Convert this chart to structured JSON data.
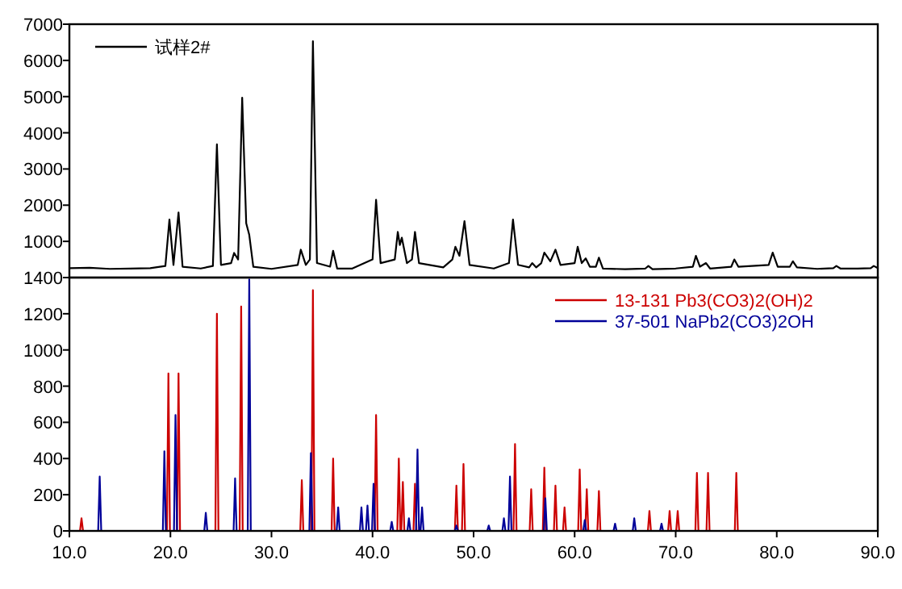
{
  "chart_data": [
    {
      "type": "line",
      "xlim": [
        10,
        90
      ],
      "ylim": [
        0,
        7000
      ],
      "yticks": [
        1000,
        2000,
        3000,
        4000,
        5000,
        6000,
        7000
      ],
      "tick_labels": "y",
      "legend": "top left",
      "series": [
        {
          "name": "试样2#",
          "color": "#000000",
          "x": [
            10,
            12,
            14,
            16,
            18,
            19.5,
            19.9,
            20.3,
            20.8,
            21.2,
            23,
            24.2,
            24.6,
            25.0,
            26.0,
            26.3,
            26.7,
            27.1,
            27.5,
            27.8,
            28.2,
            30,
            32.6,
            32.9,
            33.4,
            33.8,
            34.1,
            34.5,
            35.8,
            36.1,
            36.5,
            38,
            40.0,
            40.35,
            40.8,
            42.2,
            42.5,
            42.7,
            42.9,
            43.4,
            43.9,
            44.2,
            44.6,
            47,
            47.9,
            48.2,
            48.6,
            49.1,
            49.6,
            52,
            53.5,
            53.9,
            54.4,
            55.5,
            55.8,
            56.2,
            56.7,
            57.0,
            57.6,
            58.1,
            58.6,
            60.0,
            60.3,
            60.7,
            61.1,
            61.5,
            62.1,
            62.4,
            62.8,
            65,
            67.0,
            67.3,
            67.7,
            70,
            71.7,
            72.0,
            72.4,
            73.0,
            73.4,
            75.5,
            75.8,
            76.2,
            79.2,
            79.6,
            80.1,
            81.3,
            81.6,
            82,
            84,
            85.6,
            85.9,
            86.3,
            88,
            89.3,
            89.6,
            90
          ],
          "values": [
            260,
            270,
            240,
            250,
            260,
            320,
            1600,
            350,
            1800,
            300,
            250,
            320,
            3680,
            350,
            400,
            680,
            500,
            4970,
            1500,
            1180,
            300,
            240,
            350,
            770,
            350,
            500,
            6530,
            400,
            300,
            740,
            250,
            250,
            500,
            2150,
            400,
            500,
            1260,
            900,
            1100,
            400,
            500,
            1260,
            400,
            280,
            500,
            850,
            600,
            1560,
            350,
            250,
            400,
            1600,
            350,
            280,
            400,
            280,
            400,
            690,
            450,
            770,
            350,
            400,
            850,
            400,
            530,
            300,
            300,
            550,
            250,
            230,
            250,
            320,
            230,
            250,
            300,
            600,
            300,
            400,
            250,
            300,
            500,
            300,
            350,
            690,
            300,
            300,
            450,
            280,
            240,
            260,
            320,
            250,
            250,
            260,
            320,
            260
          ]
        }
      ]
    },
    {
      "type": "line",
      "xlim": [
        10,
        90
      ],
      "xticks": [
        {
          "value": 10,
          "label": "10.0"
        },
        {
          "value": 20,
          "label": "20.0"
        },
        {
          "value": 30,
          "label": "30.0"
        },
        {
          "value": 40,
          "label": "40.0"
        },
        {
          "value": 50,
          "label": "50.0"
        },
        {
          "value": 60,
          "label": "60.0"
        },
        {
          "value": 70,
          "label": "70.0"
        },
        {
          "value": 80,
          "label": "80.0"
        },
        {
          "value": 90,
          "label": "90.0"
        }
      ],
      "ylim": [
        0,
        1400
      ],
      "yticks": [
        0,
        200,
        400,
        600,
        800,
        1000,
        1200,
        1400
      ],
      "legend": "top right",
      "series": [
        {
          "name": "13-131 Pb3(CO3)2(OH)2",
          "color": "#cc0000",
          "x": [
            11.05,
            11.2,
            11.35,
            19.65,
            19.8,
            19.95,
            20.65,
            20.8,
            20.95,
            24.45,
            24.6,
            24.75,
            26.85,
            27.0,
            27.15,
            32.85,
            33.0,
            33.15,
            33.95,
            34.1,
            34.25,
            35.95,
            36.1,
            36.25,
            40.2,
            40.35,
            40.5,
            42.45,
            42.6,
            42.75,
            42.85,
            43.0,
            43.15,
            44.05,
            44.2,
            44.35,
            48.15,
            48.3,
            48.45,
            48.85,
            49.0,
            49.15,
            53.95,
            54.1,
            54.25,
            55.55,
            55.7,
            55.85,
            56.85,
            57.0,
            57.15,
            57.95,
            58.1,
            58.25,
            58.85,
            59.0,
            59.15,
            60.35,
            60.5,
            60.65,
            61.05,
            61.2,
            61.35,
            62.25,
            62.4,
            62.55,
            67.25,
            67.4,
            67.55,
            69.25,
            69.4,
            69.55,
            70.05,
            70.2,
            70.35,
            71.95,
            72.1,
            72.25,
            73.05,
            73.2,
            73.35,
            75.85,
            76.0,
            76.15
          ],
          "values": [
            0,
            70,
            0,
            0,
            870,
            0,
            0,
            870,
            0,
            0,
            1200,
            0,
            0,
            1240,
            0,
            0,
            280,
            0,
            0,
            1330,
            0,
            0,
            400,
            0,
            0,
            640,
            0,
            0,
            400,
            0,
            0,
            270,
            0,
            0,
            260,
            0,
            0,
            250,
            0,
            0,
            370,
            0,
            0,
            480,
            0,
            0,
            230,
            0,
            0,
            350,
            0,
            0,
            250,
            0,
            0,
            130,
            0,
            0,
            340,
            0,
            0,
            230,
            0,
            0,
            220,
            0,
            0,
            110,
            0,
            0,
            110,
            0,
            0,
            110,
            0,
            0,
            320,
            0,
            0,
            320,
            0,
            0,
            320,
            0
          ]
        },
        {
          "name": "37-501 NaPb2(CO3)2OH",
          "color": "#000099",
          "x": [
            12.85,
            13.0,
            13.15,
            19.25,
            19.4,
            19.55,
            20.35,
            20.5,
            20.65,
            23.35,
            23.5,
            23.65,
            26.25,
            26.4,
            26.55,
            27.65,
            27.8,
            27.95,
            33.75,
            33.9,
            34.05,
            36.45,
            36.6,
            36.75,
            38.75,
            38.9,
            39.05,
            39.35,
            39.5,
            39.65,
            39.95,
            40.1,
            40.25,
            41.75,
            41.9,
            42.05,
            43.45,
            43.6,
            43.75,
            44.3,
            44.45,
            44.6,
            44.75,
            44.9,
            45.05,
            48.15,
            48.3,
            48.45,
            51.35,
            51.5,
            51.65,
            52.85,
            53.0,
            53.15,
            53.45,
            53.6,
            53.75,
            56.95,
            57.1,
            57.25,
            60.85,
            61.0,
            61.15,
            63.85,
            64.0,
            64.15,
            65.75,
            65.9,
            66.05,
            68.45,
            68.6,
            68.75
          ],
          "values": [
            0,
            300,
            0,
            0,
            440,
            0,
            0,
            640,
            0,
            0,
            100,
            0,
            0,
            290,
            0,
            0,
            1390,
            0,
            0,
            430,
            0,
            0,
            130,
            0,
            0,
            130,
            0,
            0,
            140,
            0,
            0,
            260,
            0,
            0,
            50,
            0,
            0,
            70,
            0,
            0,
            450,
            0,
            0,
            130,
            0,
            0,
            30,
            0,
            0,
            30,
            0,
            0,
            70,
            0,
            0,
            300,
            0,
            0,
            180,
            0,
            0,
            60,
            0,
            0,
            40,
            0,
            0,
            70,
            0,
            0,
            40,
            0
          ]
        }
      ]
    }
  ]
}
